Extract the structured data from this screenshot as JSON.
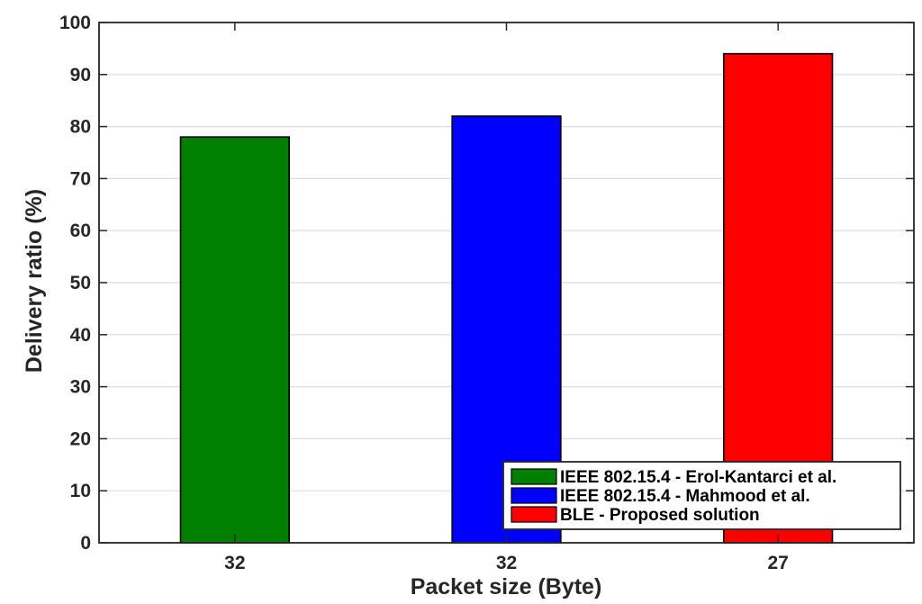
{
  "chart_data": {
    "type": "bar",
    "categories": [
      "32",
      "32",
      "27"
    ],
    "values": [
      78,
      82,
      94
    ],
    "colors": [
      "#007f00",
      "#0000ff",
      "#ff0000"
    ],
    "xlabel": "Packet size (Byte)",
    "ylabel": "Delivery ratio (%)",
    "ylim": [
      0,
      100
    ],
    "yticks": [
      0,
      10,
      20,
      30,
      40,
      50,
      60,
      70,
      80,
      90,
      100
    ],
    "grid": "horizontal",
    "legend": {
      "position": "bottom-right",
      "entries": [
        {
          "label": "IEEE 802.15.4 - Erol-Kantarci et al.",
          "color": "#007f00"
        },
        {
          "label": "IEEE 802.15.4 - Mahmood et al.",
          "color": "#0000ff"
        },
        {
          "label": "BLE - Proposed solution",
          "color": "#ff0000"
        }
      ]
    }
  }
}
